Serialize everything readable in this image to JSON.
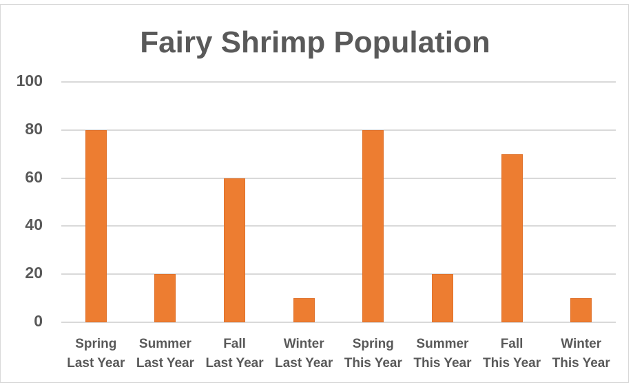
{
  "chart_data": {
    "type": "bar",
    "title": "Fairy Shrimp Population",
    "xlabel": "",
    "ylabel": "",
    "ylim": [
      0,
      100
    ],
    "yticks": [
      0,
      20,
      40,
      60,
      80,
      100
    ],
    "grid": true,
    "legend": null,
    "bar_color": "#ed7d31",
    "categories": [
      "Spring Last Year",
      "Summer Last Year",
      "Fall Last Year",
      "Winter Last Year",
      "Spring This Year",
      "Summer This Year",
      "Fall This Year",
      "Winter This Year"
    ],
    "category_lines": [
      [
        "Spring",
        "Last Year"
      ],
      [
        "Summer",
        "Last Year"
      ],
      [
        "Fall",
        "Last Year"
      ],
      [
        "Winter",
        "Last Year"
      ],
      [
        "Spring",
        "This Year"
      ],
      [
        "Summer",
        "This Year"
      ],
      [
        "Fall",
        "This Year"
      ],
      [
        "Winter",
        "This Year"
      ]
    ],
    "values": [
      80,
      20,
      60,
      10,
      80,
      20,
      70,
      10
    ]
  },
  "colors": {
    "bar": "#ed7d31",
    "text": "#595959",
    "grid": "#d9d9d9",
    "border": "#d9d9d9"
  }
}
